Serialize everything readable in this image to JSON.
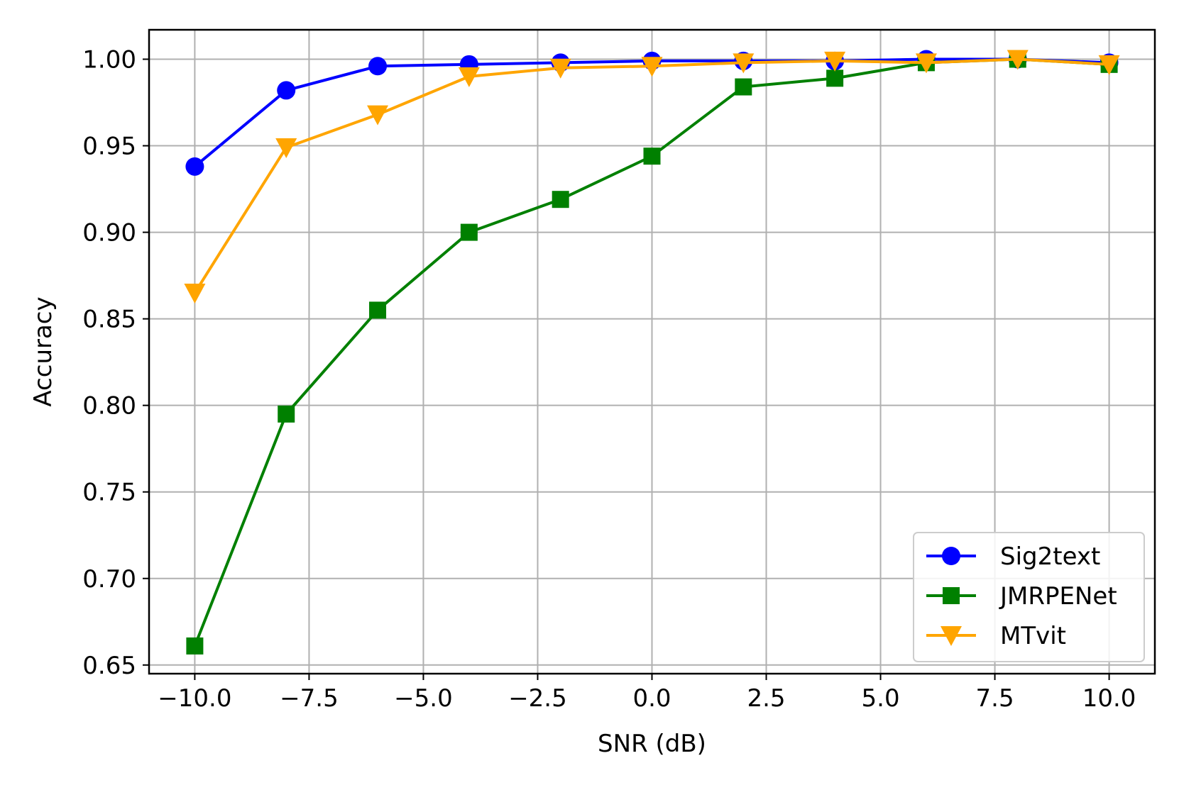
{
  "chart_data": {
    "type": "line",
    "title": "",
    "xlabel": "SNR (dB)",
    "ylabel": "Accuracy",
    "xlim": [
      -11.0,
      11.0
    ],
    "ylim": [
      0.645,
      1.017
    ],
    "x": [
      -10,
      -8,
      -6,
      -4,
      -2,
      0,
      2,
      4,
      6,
      8,
      10
    ],
    "xticks": [
      -10.0,
      -7.5,
      -5.0,
      -2.5,
      0.0,
      2.5,
      5.0,
      7.5,
      10.0
    ],
    "xtick_labels": [
      "−10.0",
      "−7.5",
      "−5.0",
      "−2.5",
      "0.0",
      "2.5",
      "5.0",
      "7.5",
      "10.0"
    ],
    "yticks": [
      0.65,
      0.7,
      0.75,
      0.8,
      0.85,
      0.9,
      0.95,
      1.0
    ],
    "ytick_labels": [
      "0.65",
      "0.70",
      "0.75",
      "0.80",
      "0.85",
      "0.90",
      "0.95",
      "1.00"
    ],
    "grid": true,
    "legend_position": "lower-right",
    "series": [
      {
        "name": "Sig2text",
        "color": "#0000ff",
        "marker": "circle",
        "values": [
          0.938,
          0.982,
          0.996,
          0.997,
          0.998,
          0.999,
          0.999,
          0.999,
          1.0,
          1.0,
          0.998
        ]
      },
      {
        "name": "JMRPENet",
        "color": "#008000",
        "marker": "square",
        "values": [
          0.661,
          0.795,
          0.855,
          0.9,
          0.919,
          0.944,
          0.984,
          0.989,
          0.998,
          1.0,
          0.997
        ]
      },
      {
        "name": "MTvit",
        "color": "#ffa500",
        "marker": "triangle-down",
        "values": [
          0.865,
          0.949,
          0.968,
          0.99,
          0.995,
          0.996,
          0.998,
          0.999,
          0.998,
          1.0,
          0.997
        ]
      }
    ]
  }
}
